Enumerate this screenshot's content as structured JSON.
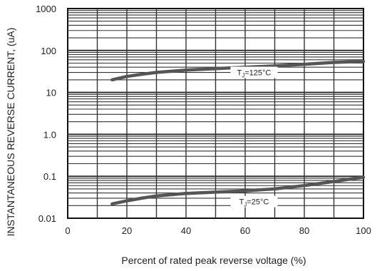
{
  "chart_data": {
    "type": "line",
    "xlabel": "Percent of rated peak reverse voltage  (%)",
    "ylabel": "INSTANTANEOUS REVERSE CURRENT, (uA)",
    "x_range": [
      0,
      100
    ],
    "y_range": [
      0.01,
      1000
    ],
    "y_scale": "log",
    "grid": true,
    "x_ticks": [
      "0",
      "20",
      "40",
      "60",
      "80",
      "100"
    ],
    "y_ticks": [
      "0.01",
      "0.1",
      "1.0",
      "10",
      "100",
      "1000"
    ],
    "series": [
      {
        "name": "TJ=125°C",
        "x": [
          15,
          20,
          25,
          30,
          40,
          50,
          60,
          70,
          80,
          90,
          100
        ],
        "y": [
          20,
          24,
          27,
          30,
          34,
          37,
          40,
          43,
          47,
          52,
          55
        ]
      },
      {
        "name": "TJ=25°C",
        "x": [
          15,
          20,
          25,
          30,
          40,
          50,
          60,
          70,
          80,
          90,
          100
        ],
        "y": [
          0.022,
          0.026,
          0.03,
          0.034,
          0.039,
          0.042,
          0.045,
          0.05,
          0.06,
          0.075,
          0.095
        ]
      }
    ],
    "annotations": [
      {
        "main": "T",
        "sub": "J",
        "rest": "=125°C",
        "x": 63,
        "y": 30
      },
      {
        "main": "T",
        "sub": "J",
        "rest": "=25°C",
        "x": 63,
        "y": 0.025
      }
    ]
  }
}
